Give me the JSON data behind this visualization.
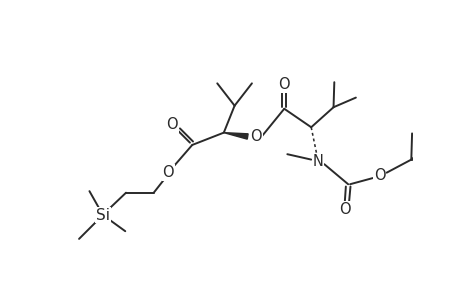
{
  "background": "#ffffff",
  "line_color": "#2a2a2a",
  "line_width": 1.4,
  "font_size": 10.5,
  "figsize": [
    4.6,
    3.0
  ],
  "dpi": 100,
  "xlim": [
    0,
    9.2
  ],
  "ylim": [
    0,
    6.0
  ]
}
